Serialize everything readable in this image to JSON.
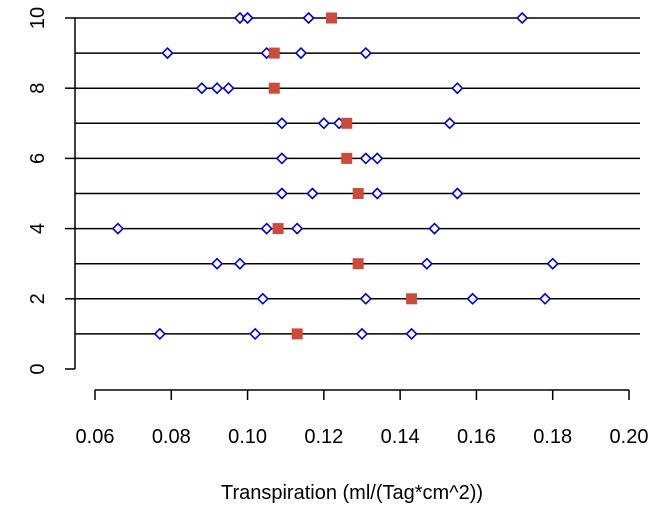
{
  "chart_data": {
    "type": "scatter",
    "title": "",
    "xlabel": "Transpiration (ml/(Tag*cm^2))",
    "ylabel": "",
    "xlim": [
      0.06,
      0.2
    ],
    "ylim": [
      0,
      10
    ],
    "x_ticks": [
      0.06,
      0.08,
      0.1,
      0.12,
      0.14,
      0.16,
      0.18,
      0.2
    ],
    "x_tick_labels": [
      "0.06",
      "0.08",
      "0.10",
      "0.12",
      "0.14",
      "0.16",
      "0.18",
      "0.20"
    ],
    "y_ticks": [
      0,
      2,
      4,
      6,
      8,
      10
    ],
    "y_tick_labels": [
      "0",
      "2",
      "4",
      "6",
      "8",
      "10"
    ],
    "row_lines": [
      1,
      2,
      3,
      4,
      5,
      6,
      7,
      8,
      9,
      10
    ],
    "grid": false,
    "legend": "none",
    "colors": {
      "observation": "#0000cc",
      "mean": "#cc4b3a",
      "lines": "#000000"
    },
    "series": [
      {
        "marker": "diamond-open",
        "color": "#0000cc",
        "points": [
          {
            "x": 0.077,
            "y": 1
          },
          {
            "x": 0.102,
            "y": 1
          },
          {
            "x": 0.13,
            "y": 1
          },
          {
            "x": 0.143,
            "y": 1
          },
          {
            "x": 0.104,
            "y": 2
          },
          {
            "x": 0.131,
            "y": 2
          },
          {
            "x": 0.159,
            "y": 2
          },
          {
            "x": 0.178,
            "y": 2
          },
          {
            "x": 0.092,
            "y": 3
          },
          {
            "x": 0.098,
            "y": 3
          },
          {
            "x": 0.147,
            "y": 3
          },
          {
            "x": 0.18,
            "y": 3
          },
          {
            "x": 0.066,
            "y": 4
          },
          {
            "x": 0.105,
            "y": 4
          },
          {
            "x": 0.113,
            "y": 4
          },
          {
            "x": 0.149,
            "y": 4
          },
          {
            "x": 0.109,
            "y": 5
          },
          {
            "x": 0.117,
            "y": 5
          },
          {
            "x": 0.134,
            "y": 5
          },
          {
            "x": 0.155,
            "y": 5
          },
          {
            "x": 0.109,
            "y": 6
          },
          {
            "x": 0.131,
            "y": 6
          },
          {
            "x": 0.134,
            "y": 6
          },
          {
            "x": 0.109,
            "y": 7
          },
          {
            "x": 0.12,
            "y": 7
          },
          {
            "x": 0.124,
            "y": 7
          },
          {
            "x": 0.153,
            "y": 7
          },
          {
            "x": 0.088,
            "y": 8
          },
          {
            "x": 0.092,
            "y": 8
          },
          {
            "x": 0.095,
            "y": 8
          },
          {
            "x": 0.155,
            "y": 8
          },
          {
            "x": 0.079,
            "y": 9
          },
          {
            "x": 0.105,
            "y": 9
          },
          {
            "x": 0.114,
            "y": 9
          },
          {
            "x": 0.131,
            "y": 9
          },
          {
            "x": 0.098,
            "y": 10
          },
          {
            "x": 0.1,
            "y": 10
          },
          {
            "x": 0.116,
            "y": 10
          },
          {
            "x": 0.172,
            "y": 10
          }
        ]
      },
      {
        "marker": "square-filled",
        "color": "#cc4b3a",
        "points": [
          {
            "x": 0.113,
            "y": 1
          },
          {
            "x": 0.143,
            "y": 2
          },
          {
            "x": 0.129,
            "y": 3
          },
          {
            "x": 0.108,
            "y": 4
          },
          {
            "x": 0.129,
            "y": 5
          },
          {
            "x": 0.126,
            "y": 6
          },
          {
            "x": 0.126,
            "y": 7
          },
          {
            "x": 0.107,
            "y": 8
          },
          {
            "x": 0.107,
            "y": 9
          },
          {
            "x": 0.122,
            "y": 10
          }
        ]
      }
    ]
  }
}
